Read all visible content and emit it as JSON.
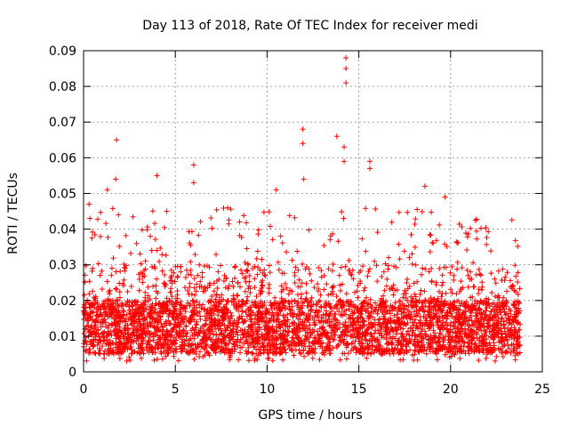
{
  "chart_data": {
    "type": "scatter",
    "title": "Day 113 of 2018, Rate Of TEC Index for receiver medi",
    "xlabel": "GPS time / hours",
    "ylabel": "ROTI / TECUs",
    "xlim": [
      0,
      25
    ],
    "ylim": [
      0,
      0.09
    ],
    "x_ticks": [
      0,
      5,
      10,
      15,
      20,
      25
    ],
    "x_tick_labels": [
      "0",
      "5",
      "10",
      "15",
      "20",
      "25"
    ],
    "y_ticks": [
      0,
      0.01,
      0.02,
      0.03,
      0.04,
      0.05,
      0.06,
      0.07,
      0.08,
      0.09
    ],
    "y_tick_labels": [
      "0",
      "0.01",
      "0.02",
      "0.03",
      "0.04",
      "0.05",
      "0.06",
      "0.07",
      "0.08",
      "0.09"
    ],
    "grid": true,
    "marker": "+",
    "color": "#ff0000",
    "x_range_of_data": [
      0.0,
      23.8
    ],
    "dense_band": [
      0.005,
      0.02
    ],
    "point_count_approx": 4000,
    "peaks": [
      {
        "x": 0.3,
        "y": 0.047
      },
      {
        "x": 0.35,
        "y": 0.043
      },
      {
        "x": 1.3,
        "y": 0.051
      },
      {
        "x": 1.75,
        "y": 0.054
      },
      {
        "x": 1.8,
        "y": 0.065
      },
      {
        "x": 4.0,
        "y": 0.055
      },
      {
        "x": 6.0,
        "y": 0.058
      },
      {
        "x": 6.0,
        "y": 0.053
      },
      {
        "x": 10.5,
        "y": 0.051
      },
      {
        "x": 11.95,
        "y": 0.068
      },
      {
        "x": 11.95,
        "y": 0.064
      },
      {
        "x": 12.0,
        "y": 0.054
      },
      {
        "x": 13.8,
        "y": 0.066
      },
      {
        "x": 14.2,
        "y": 0.063
      },
      {
        "x": 14.2,
        "y": 0.059
      },
      {
        "x": 14.3,
        "y": 0.088
      },
      {
        "x": 14.3,
        "y": 0.085
      },
      {
        "x": 14.3,
        "y": 0.081
      },
      {
        "x": 15.6,
        "y": 0.059
      },
      {
        "x": 15.6,
        "y": 0.057
      },
      {
        "x": 18.6,
        "y": 0.052
      },
      {
        "x": 19.7,
        "y": 0.049
      }
    ]
  }
}
